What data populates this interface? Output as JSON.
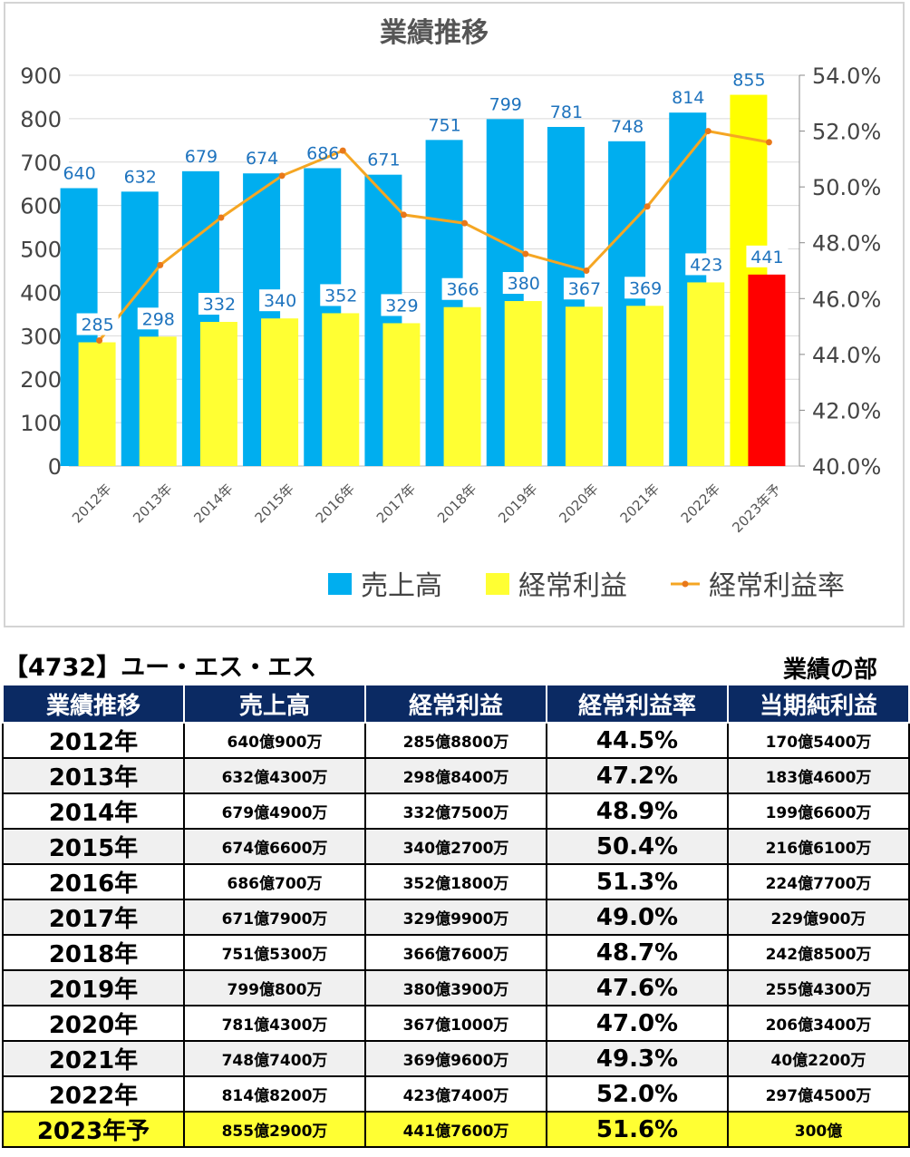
{
  "chart_data": {
    "type": "bar",
    "title": "業績推移",
    "categories": [
      "2012年",
      "2013年",
      "2014年",
      "2015年",
      "2016年",
      "2017年",
      "2018年",
      "2019年",
      "2020年",
      "2021年",
      "2022年",
      "2023年予"
    ],
    "series": [
      {
        "name": "売上高",
        "type": "bar",
        "axis": "left",
        "color": "#00aeef",
        "values": [
          640,
          632,
          679,
          674,
          686,
          671,
          751,
          799,
          781,
          748,
          814,
          855
        ]
      },
      {
        "name": "経常利益",
        "type": "bar",
        "axis": "left",
        "color": "#ffff33",
        "values": [
          285,
          298,
          332,
          340,
          352,
          329,
          366,
          380,
          367,
          369,
          423,
          441
        ]
      },
      {
        "name": "経常利益率",
        "type": "line",
        "axis": "right",
        "color": "#f5a623",
        "values": [
          44.5,
          47.2,
          48.9,
          50.4,
          51.3,
          49.0,
          48.7,
          47.6,
          47.0,
          49.3,
          52.0,
          51.6
        ]
      }
    ],
    "forecast_colors": {
      "売上高": "#ffff00",
      "経常利益": "#ff0000"
    },
    "y_left": {
      "min": 0,
      "max": 900,
      "step": 100
    },
    "y_right": {
      "min": 40,
      "max": 54,
      "step": 2,
      "format": "0.0%"
    },
    "grid": true,
    "legend": "bottom"
  },
  "company_title": "【4732】ユー・エス・エス",
  "section_title": "業績の部",
  "table": {
    "headers": [
      "業績推移",
      "売上高",
      "経常利益",
      "経常利益率",
      "当期純利益"
    ],
    "rows": [
      [
        "2012年",
        "640億900万",
        "285億8800万",
        "44.5%",
        "170億5400万"
      ],
      [
        "2013年",
        "632億4300万",
        "298億8400万",
        "47.2%",
        "183億4600万"
      ],
      [
        "2014年",
        "679億4900万",
        "332億7500万",
        "48.9%",
        "199億6600万"
      ],
      [
        "2015年",
        "674億6600万",
        "340億2700万",
        "50.4%",
        "216億6100万"
      ],
      [
        "2016年",
        "686億700万",
        "352億1800万",
        "51.3%",
        "224億7700万"
      ],
      [
        "2017年",
        "671億7900万",
        "329億9900万",
        "49.0%",
        "229億900万"
      ],
      [
        "2018年",
        "751億5300万",
        "366億7600万",
        "48.7%",
        "242億8500万"
      ],
      [
        "2019年",
        "799億800万",
        "380億3900万",
        "47.6%",
        "255億4300万"
      ],
      [
        "2020年",
        "781億4300万",
        "367億1000万",
        "47.0%",
        "206億3400万"
      ],
      [
        "2021年",
        "748億7400万",
        "369億9600万",
        "49.3%",
        "40億2200万"
      ],
      [
        "2022年",
        "814億8200万",
        "423億7400万",
        "52.0%",
        "297億4500万"
      ],
      [
        "2023年予",
        "855億2900万",
        "441億7600万",
        "51.6%",
        "300億"
      ]
    ]
  }
}
